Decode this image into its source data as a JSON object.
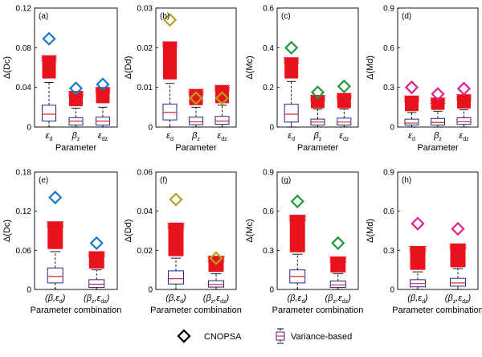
{
  "colors": {
    "box_outline": "#1f2a8c",
    "median": "#e8262b",
    "outlier": "#e8131c",
    "whisker": "#000000",
    "diamond": {
      "Dc": "#1e78c8",
      "Dd": "#b8a020",
      "Mc": "#1e9a3a",
      "Md": "#e0208c"
    }
  },
  "legend": {
    "cnopsa_label": "CNOPSA",
    "variance_label": "Variance-based"
  },
  "chart_data": [
    {
      "panel": "(a)",
      "type": "box",
      "ylabel": "Δ(Dc)",
      "xlabel": "Parameter",
      "ylim": [
        0,
        0.12
      ],
      "yticks": [
        "0",
        "0.04",
        "0.08",
        "0.12"
      ],
      "ytick_values": [
        0,
        0.04,
        0.08,
        0.12
      ],
      "categories": [
        {
          "sym": "ε",
          "sub": "d"
        },
        {
          "sym": "β",
          "sub": "z"
        },
        {
          "sym": "ε",
          "sub": "dz"
        }
      ],
      "boxes": [
        {
          "q1": 0.006,
          "median": 0.013,
          "q3": 0.022,
          "whisker_low": 0,
          "whisker_high": 0.045,
          "outlier_low": 0.049,
          "outlier_high": 0.072
        },
        {
          "q1": 0.002,
          "median": 0.006,
          "q3": 0.0095,
          "whisker_low": 0,
          "whisker_high": 0.019,
          "outlier_low": 0.021,
          "outlier_high": 0.036
        },
        {
          "q1": 0.002,
          "median": 0.006,
          "q3": 0.01,
          "whisker_low": 0,
          "whisker_high": 0.02,
          "outlier_low": 0.024,
          "outlier_high": 0.04
        }
      ],
      "cnopsa": [
        0.089,
        0.039,
        0.043
      ],
      "diamond_color": "Dc"
    },
    {
      "panel": "(b)",
      "type": "box",
      "ylabel": "Δ(Dd)",
      "xlabel": "Parameter",
      "ylim": [
        0,
        0.03
      ],
      "yticks": [
        "0",
        "0.01",
        "0.02",
        "0.03"
      ],
      "ytick_values": [
        0,
        0.01,
        0.02,
        0.03
      ],
      "categories": [
        {
          "sym": "ε",
          "sub": "d"
        },
        {
          "sym": "β",
          "sub": "z"
        },
        {
          "sym": "ε",
          "sub": "dz"
        }
      ],
      "boxes": [
        {
          "q1": 0.0018,
          "median": 0.0037,
          "q3": 0.0058,
          "whisker_low": 0,
          "whisker_high": 0.011,
          "outlier_low": 0.012,
          "outlier_high": 0.0215
        },
        {
          "q1": 0.0006,
          "median": 0.0013,
          "q3": 0.0025,
          "whisker_low": 0,
          "whisker_high": 0.005,
          "outlier_low": 0.0055,
          "outlier_high": 0.0095
        },
        {
          "q1": 0.0007,
          "median": 0.0015,
          "q3": 0.0027,
          "whisker_low": 0,
          "whisker_high": 0.0055,
          "outlier_low": 0.006,
          "outlier_high": 0.0105
        }
      ],
      "cnopsa": [
        0.027,
        0.0073,
        0.0073
      ],
      "diamond_color": "Dd"
    },
    {
      "panel": "(c)",
      "type": "box",
      "ylabel": "Δ(Mc)",
      "xlabel": "Parameter",
      "ylim": [
        0,
        0.6
      ],
      "yticks": [
        "0",
        "0.2",
        "0.4",
        "0.6"
      ],
      "ytick_values": [
        0,
        0.2,
        0.4,
        0.6
      ],
      "categories": [
        {
          "sym": "ε",
          "sub": "d"
        },
        {
          "sym": "β",
          "sub": "z"
        },
        {
          "sym": "ε",
          "sub": "dz"
        }
      ],
      "boxes": [
        {
          "q1": 0.025,
          "median": 0.065,
          "q3": 0.115,
          "whisker_low": 0,
          "whisker_high": 0.23,
          "outlier_low": 0.245,
          "outlier_high": 0.35
        },
        {
          "q1": 0.01,
          "median": 0.025,
          "q3": 0.04,
          "whisker_low": 0,
          "whisker_high": 0.09,
          "outlier_low": 0.095,
          "outlier_high": 0.16
        },
        {
          "q1": 0.01,
          "median": 0.025,
          "q3": 0.045,
          "whisker_low": 0,
          "whisker_high": 0.09,
          "outlier_low": 0.095,
          "outlier_high": 0.17
        }
      ],
      "cnopsa": [
        0.4,
        0.175,
        0.205
      ],
      "diamond_color": "Mc"
    },
    {
      "panel": "(d)",
      "type": "box",
      "ylabel": "Δ(Md)",
      "xlabel": "Parameter",
      "ylim": [
        0,
        0.9
      ],
      "yticks": [
        "0",
        "0.3",
        "0.6",
        "0.9"
      ],
      "ytick_values": [
        0,
        0.3,
        0.6,
        0.9
      ],
      "categories": [
        {
          "sym": "ε",
          "sub": "d"
        },
        {
          "sym": "β",
          "sub": "z"
        },
        {
          "sym": "ε",
          "sub": "dz"
        }
      ],
      "boxes": [
        {
          "q1": 0.015,
          "median": 0.03,
          "q3": 0.06,
          "whisker_low": 0,
          "whisker_high": 0.11,
          "outlier_low": 0.12,
          "outlier_high": 0.235
        },
        {
          "q1": 0.015,
          "median": 0.035,
          "q3": 0.065,
          "whisker_low": 0,
          "whisker_high": 0.12,
          "outlier_low": 0.13,
          "outlier_high": 0.22
        },
        {
          "q1": 0.02,
          "median": 0.04,
          "q3": 0.07,
          "whisker_low": 0,
          "whisker_high": 0.13,
          "outlier_low": 0.14,
          "outlier_high": 0.245
        }
      ],
      "cnopsa": [
        0.3,
        0.25,
        0.29
      ],
      "diamond_color": "Md"
    },
    {
      "panel": "(e)",
      "type": "box",
      "ylabel": "Δ(Dc)",
      "xlabel": "Parameter combination",
      "ylim": [
        0,
        0.18
      ],
      "yticks": [
        "0",
        "0.06",
        "0.12",
        "0.18"
      ],
      "ytick_values": [
        0,
        0.06,
        0.12,
        0.18
      ],
      "categories": [
        {
          "sym": "(β,ε",
          "sub": "d",
          "close": ")"
        },
        {
          "sym": "(β",
          "sub": "z",
          "mid": ",ε",
          "sub2": "dz",
          "close": ")"
        }
      ],
      "boxes": [
        {
          "q1": 0.01,
          "median": 0.02,
          "q3": 0.033,
          "whisker_low": 0,
          "whisker_high": 0.058,
          "outlier_low": 0.062,
          "outlier_high": 0.104
        },
        {
          "q1": 0.003,
          "median": 0.008,
          "q3": 0.015,
          "whisker_low": 0,
          "whisker_high": 0.03,
          "outlier_low": 0.032,
          "outlier_high": 0.058
        }
      ],
      "cnopsa": [
        0.141,
        0.071
      ],
      "diamond_color": "Dc"
    },
    {
      "panel": "(f)",
      "type": "box",
      "ylabel": "Δ(Dd)",
      "xlabel": "Parameter combination",
      "ylim": [
        0,
        0.06
      ],
      "yticks": [
        "0",
        "0.02",
        "0.04",
        "0.06"
      ],
      "ytick_values": [
        0,
        0.02,
        0.04,
        0.06
      ],
      "categories": [
        {
          "sym": "(β,ε",
          "sub": "d",
          "close": ")"
        },
        {
          "sym": "(β",
          "sub": "z",
          "mid": ",ε",
          "sub2": "dz",
          "close": ")"
        }
      ],
      "boxes": [
        {
          "q1": 0.0028,
          "median": 0.0055,
          "q3": 0.0095,
          "whisker_low": 0,
          "whisker_high": 0.016,
          "outlier_low": 0.017,
          "outlier_high": 0.034
        },
        {
          "q1": 0.0012,
          "median": 0.0026,
          "q3": 0.0045,
          "whisker_low": 0,
          "whisker_high": 0.008,
          "outlier_low": 0.009,
          "outlier_high": 0.017
        }
      ],
      "cnopsa": [
        0.046,
        0.016
      ],
      "diamond_color": "Dd"
    },
    {
      "panel": "(g)",
      "type": "box",
      "ylabel": "Δ(Mc)",
      "xlabel": "Parameter combination",
      "ylim": [
        0,
        0.9
      ],
      "yticks": [
        "0",
        "0.3",
        "0.6",
        "0.9"
      ],
      "ytick_values": [
        0,
        0.3,
        0.6,
        0.9
      ],
      "categories": [
        {
          "sym": "(β,ε",
          "sub": "d",
          "close": ")"
        },
        {
          "sym": "(β",
          "sub": "z",
          "mid": ",ε",
          "sub2": "dz",
          "close": ")"
        }
      ],
      "boxes": [
        {
          "q1": 0.05,
          "median": 0.1,
          "q3": 0.15,
          "whisker_low": 0,
          "whisker_high": 0.27,
          "outlier_low": 0.285,
          "outlier_high": 0.57
        },
        {
          "q1": 0.015,
          "median": 0.035,
          "q3": 0.065,
          "whisker_low": 0,
          "whisker_high": 0.12,
          "outlier_low": 0.13,
          "outlier_high": 0.25
        }
      ],
      "cnopsa": [
        0.675,
        0.355
      ],
      "diamond_color": "Mc"
    },
    {
      "panel": "(h)",
      "type": "box",
      "ylabel": "Δ(Md)",
      "xlabel": "Parameter combination",
      "ylim": [
        0,
        0.9
      ],
      "yticks": [
        "0",
        "0.3",
        "0.6",
        "0.9"
      ],
      "ytick_values": [
        0,
        0.3,
        0.6,
        0.9
      ],
      "categories": [
        {
          "sym": "(β,ε",
          "sub": "d",
          "close": ")"
        },
        {
          "sym": "(β",
          "sub": "z",
          "mid": ",ε",
          "sub2": "dz",
          "close": ")"
        }
      ],
      "boxes": [
        {
          "q1": 0.02,
          "median": 0.045,
          "q3": 0.075,
          "whisker_low": 0,
          "whisker_high": 0.135,
          "outlier_low": 0.15,
          "outlier_high": 0.33
        },
        {
          "q1": 0.025,
          "median": 0.05,
          "q3": 0.085,
          "whisker_low": 0,
          "whisker_high": 0.16,
          "outlier_low": 0.17,
          "outlier_high": 0.35
        }
      ],
      "cnopsa": [
        0.505,
        0.465
      ],
      "diamond_color": "Md"
    }
  ]
}
